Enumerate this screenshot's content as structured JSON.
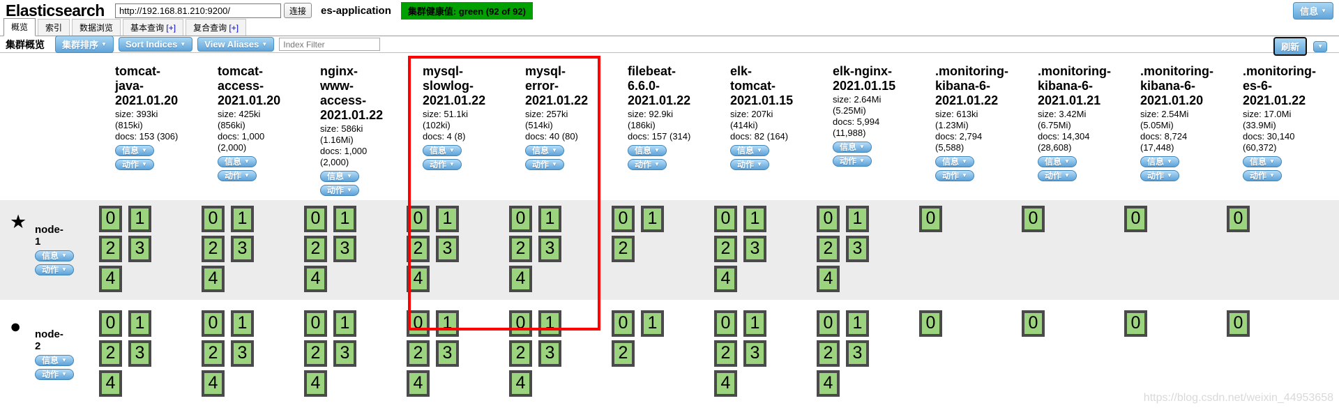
{
  "header": {
    "app_title": "Elasticsearch",
    "url_value": "http://192.168.81.210:9200/",
    "connect_label": "连接",
    "cluster_name": "es-application",
    "health_label": "集群健康值: green (92 of 92)",
    "info_button_label": "信息"
  },
  "tabs": [
    {
      "key": "overview",
      "label": "概览",
      "suffix": "",
      "active": true
    },
    {
      "key": "indices",
      "label": "索引",
      "suffix": "",
      "active": false
    },
    {
      "key": "data-browser",
      "label": "数据浏览",
      "suffix": "",
      "active": false
    },
    {
      "key": "basic-query",
      "label": "基本查询",
      "suffix": "[+]",
      "active": false
    },
    {
      "key": "compound-query",
      "label": "复合查询",
      "suffix": "[+]",
      "active": false
    }
  ],
  "toolbar": {
    "title": "集群概览",
    "cluster_sort_label": "集群排序",
    "sort_indices_label": "Sort Indices",
    "view_aliases_label": "View Aliases",
    "filter_placeholder": "Index Filter",
    "refresh_label": "刷新"
  },
  "buttons": {
    "info_label": "信息",
    "actions_label": "动作"
  },
  "nodes": [
    {
      "name": "node-1",
      "icon": "star"
    },
    {
      "name": "node-2",
      "icon": "circle"
    }
  ],
  "indices": [
    {
      "name": "tomcat-java-2021.01.20",
      "size": "size: 393ki (815ki)",
      "docs": "docs: 153 (306)",
      "highlighted": false,
      "shards_by_node": [
        [
          0,
          1,
          2,
          3,
          4
        ],
        [
          0,
          1,
          2,
          3,
          4
        ]
      ]
    },
    {
      "name": "tomcat-access-2021.01.20",
      "size": "size: 425ki (856ki)",
      "docs": "docs: 1,000 (2,000)",
      "highlighted": false,
      "shards_by_node": [
        [
          0,
          1,
          2,
          3,
          4
        ],
        [
          0,
          1,
          2,
          3,
          4
        ]
      ]
    },
    {
      "name": "nginx-www-access-2021.01.22",
      "size": "size: 586ki (1.16Mi)",
      "docs": "docs: 1,000 (2,000)",
      "highlighted": false,
      "shards_by_node": [
        [
          0,
          1,
          2,
          3,
          4
        ],
        [
          0,
          1,
          2,
          3,
          4
        ]
      ]
    },
    {
      "name": "mysql-slowlog-2021.01.22",
      "size": "size: 51.1ki (102ki)",
      "docs": "docs: 4 (8)",
      "highlighted": true,
      "shards_by_node": [
        [
          0,
          1,
          2,
          3,
          4
        ],
        [
          0,
          1,
          2,
          3,
          4
        ]
      ]
    },
    {
      "name": "mysql-error-2021.01.22",
      "size": "size: 257ki (514ki)",
      "docs": "docs: 40 (80)",
      "highlighted": true,
      "shards_by_node": [
        [
          0,
          1,
          2,
          3,
          4
        ],
        [
          0,
          1,
          2,
          3,
          4
        ]
      ]
    },
    {
      "name": "filebeat-6.6.0-2021.01.22",
      "size": "size: 92.9ki (186ki)",
      "docs": "docs: 157 (314)",
      "highlighted": false,
      "shards_by_node": [
        [
          0,
          1,
          2
        ],
        [
          0,
          1,
          2
        ]
      ]
    },
    {
      "name": "elk-tomcat-2021.01.15",
      "size": "size: 207ki (414ki)",
      "docs": "docs: 82 (164)",
      "highlighted": false,
      "shards_by_node": [
        [
          0,
          1,
          2,
          3,
          4
        ],
        [
          0,
          1,
          2,
          3,
          4
        ]
      ]
    },
    {
      "name": "elk-nginx-2021.01.15",
      "size": "size: 2.64Mi (5.25Mi)",
      "docs": "docs: 5,994 (11,988)",
      "highlighted": false,
      "shards_by_node": [
        [
          0,
          1,
          2,
          3,
          4
        ],
        [
          0,
          1,
          2,
          3,
          4
        ]
      ]
    },
    {
      "name": ".monitoring-kibana-6-2021.01.22",
      "size": "size: 613ki (1.23Mi)",
      "docs": "docs: 2,794 (5,588)",
      "highlighted": false,
      "shards_by_node": [
        [
          0
        ],
        [
          0
        ]
      ]
    },
    {
      "name": ".monitoring-kibana-6-2021.01.21",
      "size": "size: 3.42Mi (6.75Mi)",
      "docs": "docs: 14,304 (28,608)",
      "highlighted": false,
      "shards_by_node": [
        [
          0
        ],
        [
          0
        ]
      ]
    },
    {
      "name": ".monitoring-kibana-6-2021.01.20",
      "size": "size: 2.54Mi (5.05Mi)",
      "docs": "docs: 8,724 (17,448)",
      "highlighted": false,
      "shards_by_node": [
        [
          0
        ],
        [
          0
        ]
      ]
    },
    {
      "name": ".monitoring-es-6-2021.01.22",
      "size": "size: 17.0Mi (33.9Mi)",
      "docs": "docs: 30,140 (60,372)",
      "highlighted": false,
      "shards_by_node": [
        [
          0
        ],
        [
          0
        ]
      ]
    }
  ],
  "colors": {
    "health_green": "#00a000",
    "shard_fill": "#9cd37f",
    "shard_border": "#4a4a4a",
    "row_stripe": "#ececec",
    "accent_blue": "#60a4d9",
    "highlight_red": "#ff0000"
  },
  "watermark": {
    "text": "https://blog.csdn.net/weixin_44953658"
  }
}
